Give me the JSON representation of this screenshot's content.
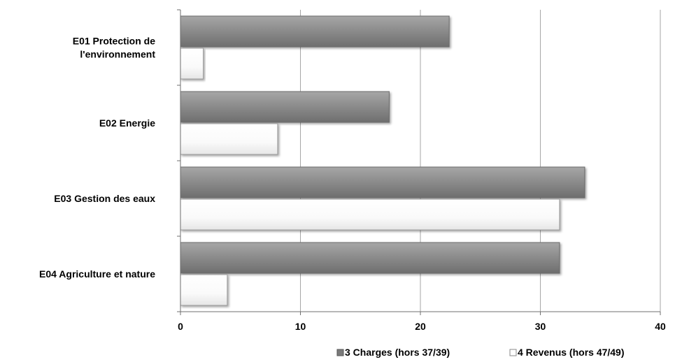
{
  "chart_data": {
    "type": "bar",
    "orientation": "horizontal",
    "categories": [
      "E01 Protection de l'environnement",
      "E02 Energie",
      "E03 Gestion des eaux",
      "E04 Agriculture et nature"
    ],
    "category_lines": [
      [
        "E01 Protection de",
        "l'environnement"
      ],
      [
        "E02 Energie"
      ],
      [
        "E03 Gestion des eaux"
      ],
      [
        "E04 Agriculture et nature"
      ]
    ],
    "series": [
      {
        "name": "3 Charges (hors 37/39)",
        "values": [
          22.4,
          17.4,
          33.7,
          31.6
        ],
        "color": "#8c8c8c"
      },
      {
        "name": "4 Revenus (hors 47/49)",
        "values": [
          1.9,
          8.1,
          31.6,
          3.9
        ],
        "color": "#ffffff"
      }
    ],
    "xlim": [
      0,
      40
    ],
    "xticks": [
      0,
      10,
      20,
      30,
      40
    ],
    "grid": true,
    "legend": "bottom-right",
    "title": "",
    "xlabel": "",
    "ylabel": ""
  }
}
